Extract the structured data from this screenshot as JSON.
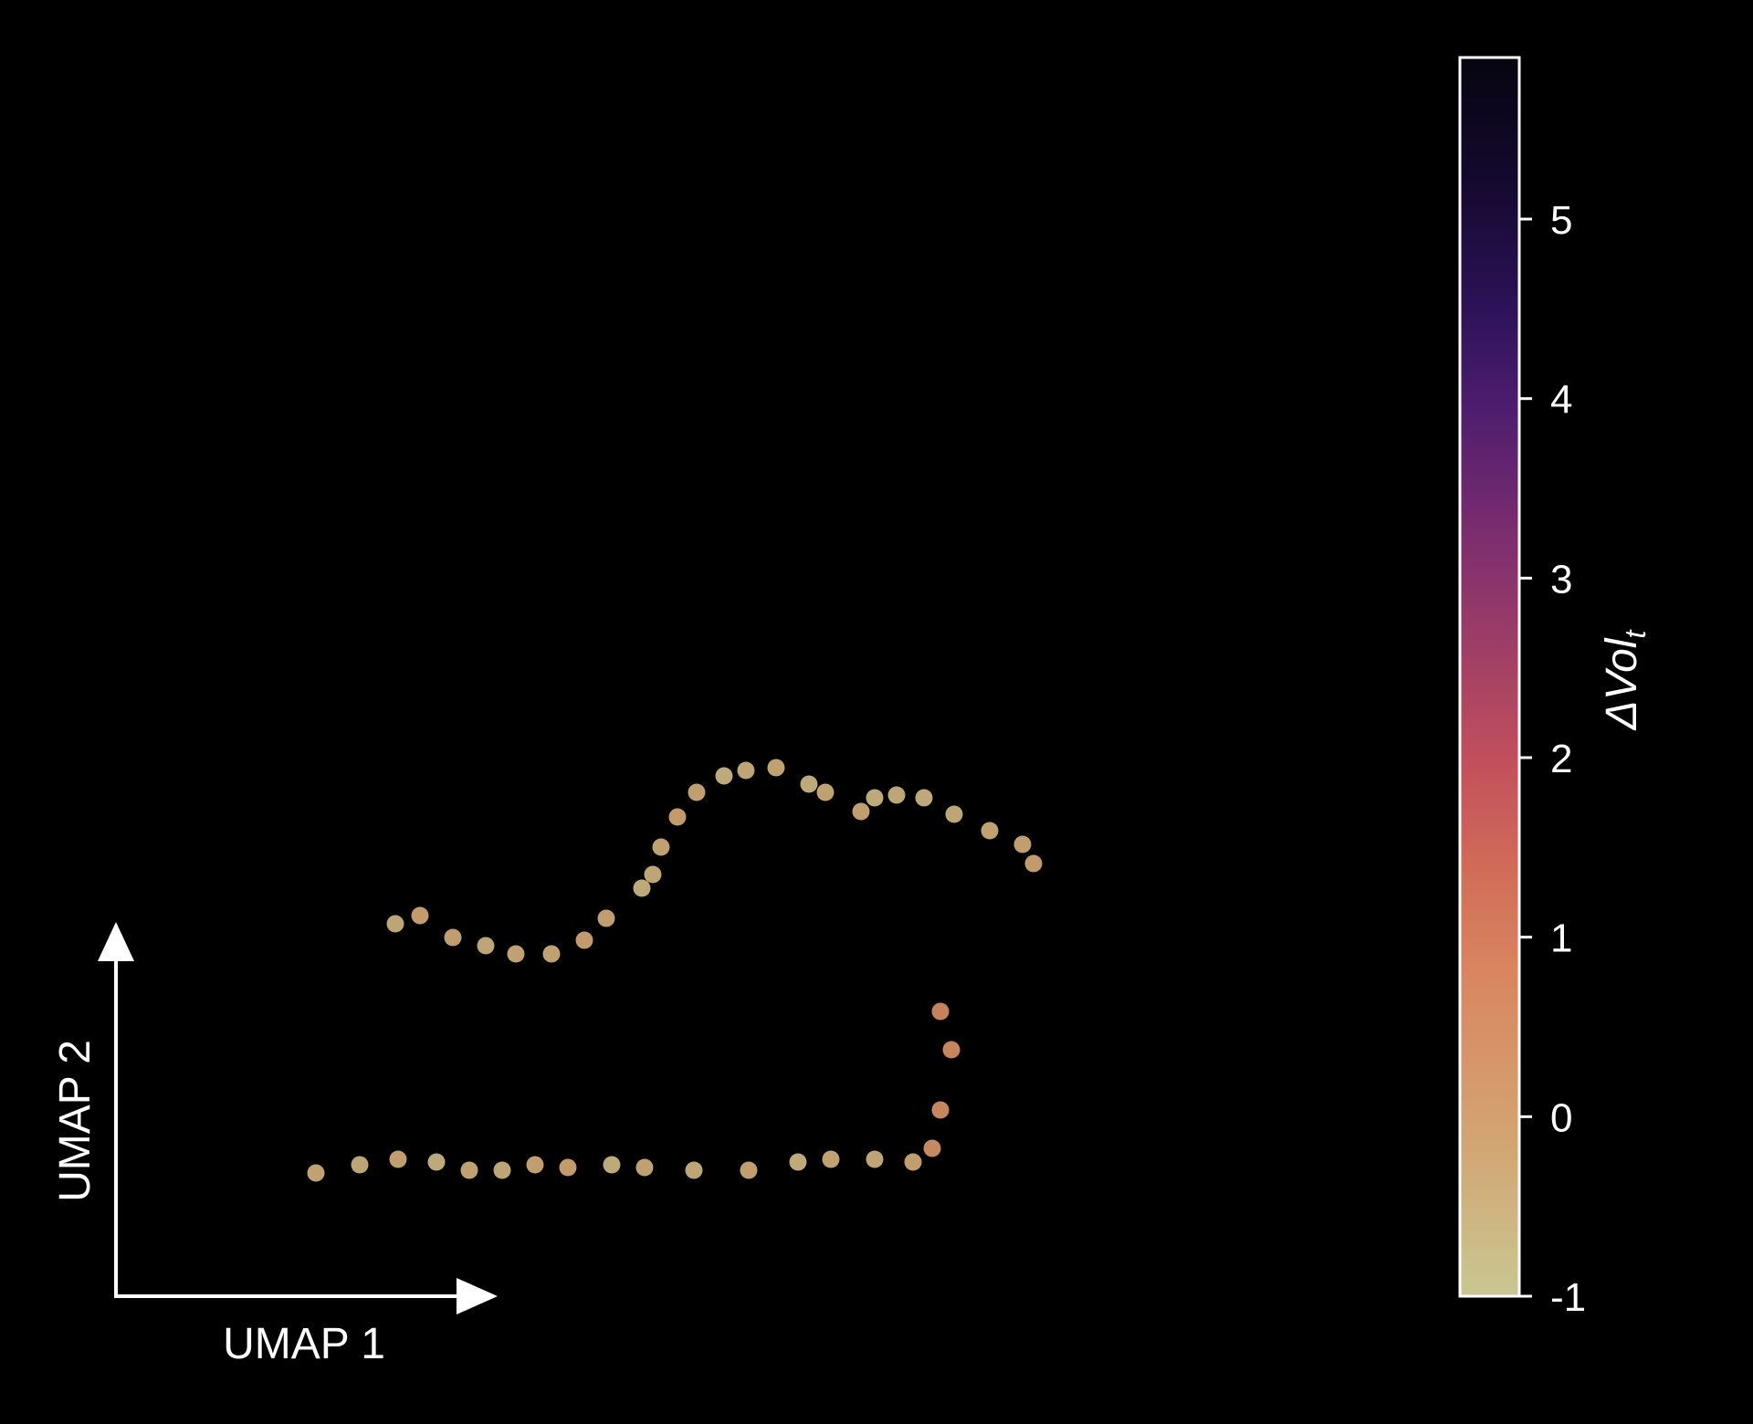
{
  "chart_data": {
    "type": "scatter",
    "title": "",
    "xlabel": "UMAP 1",
    "ylabel": "UMAP 2",
    "colorbar": {
      "label_base": "ΔVol",
      "label_sub": "t",
      "colormap": "magma_r",
      "range": [
        -1,
        5.9
      ],
      "ticks": [
        "-1",
        "0",
        "1",
        "2",
        "3",
        "4",
        "5"
      ]
    },
    "axes_style": "arrows-only (no ticks)",
    "legend": "none",
    "grid": false,
    "background_color": "#000000",
    "series": [
      {
        "points": [
          [
            297,
            -54
          ],
          [
            300,
            -68
          ],
          [
            304,
            -90
          ],
          [
            300,
            -104
          ],
          [
            334,
            -158
          ],
          [
            330,
            -165
          ],
          [
            318,
            -170
          ],
          [
            305,
            -176
          ],
          [
            294,
            -182
          ],
          [
            284,
            -183
          ],
          [
            276,
            -182
          ],
          [
            271,
            -177
          ],
          [
            258,
            -184
          ],
          [
            252,
            -187
          ],
          [
            240,
            -193
          ],
          [
            229,
            -192
          ],
          [
            221,
            -190
          ],
          [
            211,
            -184
          ],
          [
            204,
            -175
          ],
          [
            198,
            -164
          ],
          [
            195,
            -154
          ],
          [
            191,
            -149
          ],
          [
            178,
            -138
          ],
          [
            170,
            -130
          ],
          [
            158,
            -125
          ],
          [
            145,
            -125
          ],
          [
            134,
            -128
          ],
          [
            122,
            -131
          ],
          [
            110,
            -139
          ],
          [
            101,
            -136
          ]
        ],
        "c": [
          0.3,
          0.4,
          0.5,
          0.6,
          -0.2,
          -0.3,
          -0.4,
          -0.5,
          -0.6,
          -0.5,
          -0.6,
          -0.3,
          -0.4,
          -0.6,
          -0.4,
          -0.5,
          -0.6,
          -0.3,
          -0.2,
          -0.4,
          -0.5,
          -0.6,
          -0.3,
          -0.2,
          -0.4,
          -0.4,
          -0.5,
          -0.3,
          -0.2,
          -0.5
        ]
      },
      {
        "points": [
          [
            72,
            -45
          ],
          [
            88,
            -48
          ],
          [
            102,
            -50
          ],
          [
            116,
            -49
          ],
          [
            128,
            -46
          ],
          [
            140,
            -46
          ],
          [
            152,
            -48
          ],
          [
            164,
            -47
          ],
          [
            180,
            -48
          ],
          [
            192,
            -47
          ],
          [
            210,
            -46
          ],
          [
            230,
            -46
          ],
          [
            248,
            -49
          ],
          [
            260,
            -50
          ],
          [
            276,
            -50
          ],
          [
            290,
            -49
          ]
        ],
        "c": [
          -0.4,
          -0.5,
          -0.3,
          -0.6,
          -0.4,
          -0.5,
          -0.3,
          -0.2,
          -0.6,
          -0.4,
          -0.5,
          -0.3,
          -0.6,
          -0.4,
          -0.5,
          -0.3
        ]
      }
    ]
  }
}
